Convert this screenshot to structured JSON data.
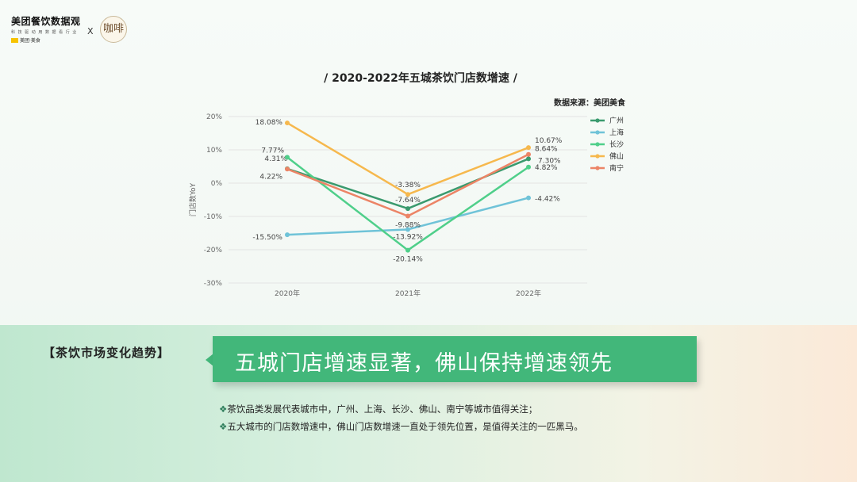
{
  "header": {
    "brand_title": "美团餐饮数据观",
    "brand_sub": "科 技 驱 动 用 数 据 看 行 业",
    "brand_meituan": "美团·美食",
    "times": "X",
    "partner_badge": "咖啡"
  },
  "chart_data": {
    "type": "line",
    "title": "/ 2020-2022年五城茶饮门店数增速 /",
    "source": "数据来源：美团美食",
    "ylabel": "门店数YoY",
    "xlabel": "",
    "categories": [
      "2020年",
      "2021年",
      "2022年"
    ],
    "ylim": [
      -30,
      20
    ],
    "yticks": [
      20,
      10,
      0,
      -10,
      -20,
      -30
    ],
    "ytick_labels": [
      "20%",
      "10%",
      "0%",
      "-10%",
      "-20%",
      "-30%"
    ],
    "grid": true,
    "legend_position": "right",
    "series": [
      {
        "name": "广州",
        "color": "#3a9a6e",
        "values": [
          4.31,
          -7.64,
          7.3
        ],
        "labels": [
          "4.31%",
          "-7.64%",
          "7.30%"
        ]
      },
      {
        "name": "上海",
        "color": "#6fc3d8",
        "values": [
          -15.5,
          -13.92,
          -4.42
        ],
        "labels": [
          "-15.50%",
          "-13.92%",
          "-4.42%"
        ]
      },
      {
        "name": "长沙",
        "color": "#4fcf8a",
        "values": [
          7.77,
          -20.14,
          4.82
        ],
        "labels": [
          "7.77%",
          "-20.14%",
          "4.82%"
        ]
      },
      {
        "name": "佛山",
        "color": "#f6b84d",
        "values": [
          18.08,
          -3.38,
          10.67
        ],
        "labels": [
          "18.08%",
          "-3.38%",
          "10.67%"
        ]
      },
      {
        "name": "南宁",
        "color": "#ec8466",
        "values": [
          4.22,
          -9.88,
          8.64
        ],
        "labels": [
          "4.22%",
          "-9.88%",
          "8.64%"
        ]
      }
    ]
  },
  "summary": {
    "tag": "【茶饮市场变化趋势】",
    "headline": "五城门店增速显著，佛山保持增速领先",
    "bullets": [
      "茶饮品类发展代表城市中，广州、上海、长沙、佛山、南宁等城市值得关注；",
      "五大城市的门店数增速中，佛山门店数增速一直处于领先位置，是值得关注的一匹黑马。"
    ],
    "bullet_mark": "❖"
  }
}
